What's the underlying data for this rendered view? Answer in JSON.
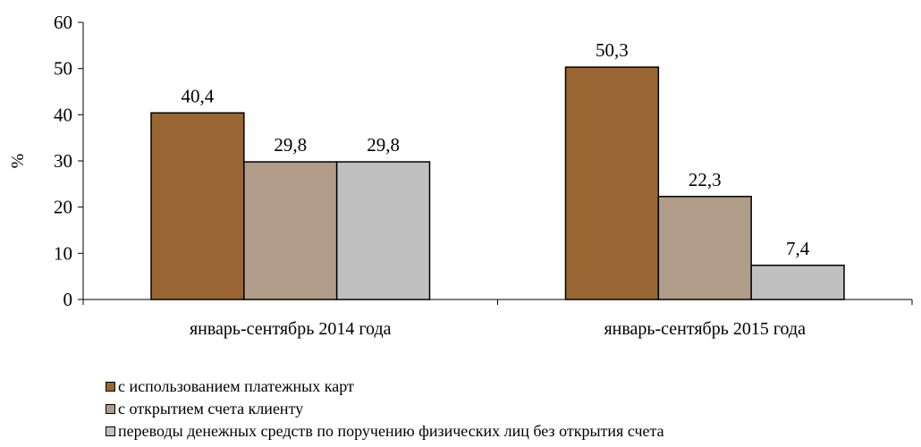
{
  "chart_data": {
    "type": "bar",
    "title": "",
    "xlabel": "",
    "ylabel": "%",
    "ylim": [
      0,
      60
    ],
    "yticks": [
      0,
      10,
      20,
      30,
      40,
      50,
      60
    ],
    "categories": [
      "январь-сентябрь 2014 года",
      "январь-сентябрь 2015 года"
    ],
    "series": [
      {
        "name": "с использованием платежных карт",
        "values": [
          40.4,
          50.3
        ],
        "labels": [
          "40,4",
          "50,3"
        ],
        "color": "#996633"
      },
      {
        "name": "с открытием счета клиенту",
        "values": [
          29.8,
          22.3
        ],
        "labels": [
          "29,8",
          "22,3"
        ],
        "color": "#b09c88"
      },
      {
        "name": "переводы денежных средств по поручению физических лиц без открытия счета",
        "values": [
          29.8,
          7.4
        ],
        "labels": [
          "29,8",
          "7,4"
        ],
        "color": "#c0c0c0"
      }
    ],
    "legend_position": "bottom",
    "grid": false
  }
}
